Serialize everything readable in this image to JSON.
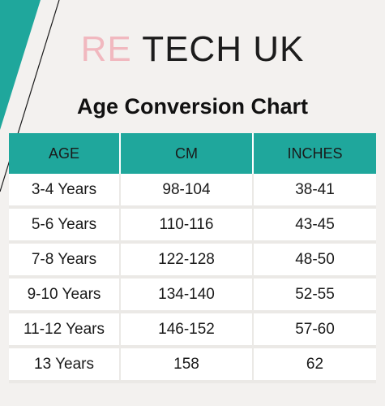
{
  "brand": {
    "accent": "RE",
    "rest": " TECH UK"
  },
  "title": "Age Conversion Chart",
  "table": {
    "headers": [
      "AGE",
      "CM",
      "INCHES"
    ],
    "rows": [
      [
        "3-4 Years",
        "98-104",
        "38-41"
      ],
      [
        "5-6 Years",
        "110-116",
        "43-45"
      ],
      [
        "7-8 Years",
        "122-128",
        "48-50"
      ],
      [
        "9-10 Years",
        "134-140",
        "52-55"
      ],
      [
        "11-12 Years",
        "146-152",
        "57-60"
      ],
      [
        "13 Years",
        "158",
        "62"
      ]
    ]
  },
  "colors": {
    "teal": "#1fa79c",
    "pink": "#f1b8bf",
    "background": "#f3f1ef",
    "row": "#ffffff"
  }
}
